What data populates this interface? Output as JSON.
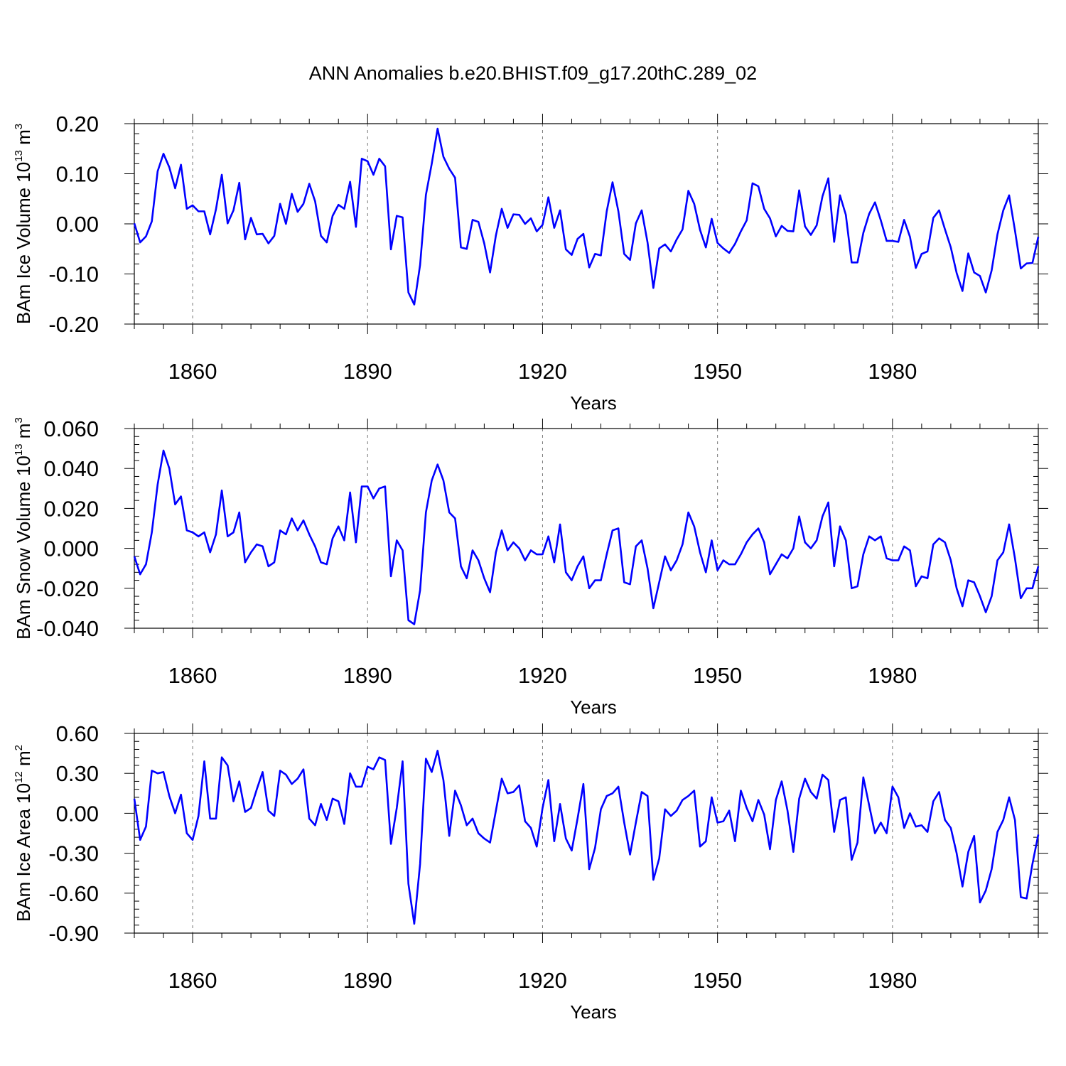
{
  "title": "ANN Anomalies b.e20.BHIST.f09_g17.20thC.289_02",
  "colors": {
    "line": "#0000ff",
    "frame": "#000000",
    "grid": "#777777"
  },
  "chart_data": [
    {
      "type": "line",
      "name": "ice-volume",
      "title": "ANN Anomalies b.e20.BHIST.f09_g17.20thC.289_02",
      "xlabel": "Years",
      "ylabel_main": "BAm Ice Volume 10",
      "ylabel_sup": "13",
      "ylabel_unit": " m",
      "ylabel_unit_sup": "3",
      "xlim": [
        1850,
        2005
      ],
      "ylim": [
        -0.2,
        0.2
      ],
      "xticks": [
        1860,
        1890,
        1920,
        1950,
        1980
      ],
      "xtick_labels": [
        "1860",
        "1890",
        "1920",
        "1950",
        "1980"
      ],
      "yticks": [
        0.2,
        0.1,
        0.0,
        -0.1,
        -0.2
      ],
      "ytick_labels": [
        "0.20",
        "0.10",
        "0.00",
        "-0.10",
        "-0.20"
      ],
      "x_start": 1850,
      "values": [
        0.001,
        -0.037,
        -0.025,
        0.005,
        0.105,
        0.14,
        0.113,
        0.071,
        0.118,
        0.03,
        0.037,
        0.025,
        0.025,
        -0.021,
        0.029,
        0.098,
        0.001,
        0.027,
        0.082,
        -0.031,
        0.012,
        -0.021,
        -0.02,
        -0.039,
        -0.024,
        0.04,
        0.0,
        0.06,
        0.024,
        0.04,
        0.08,
        0.045,
        -0.024,
        -0.037,
        0.016,
        0.038,
        0.03,
        0.084,
        -0.006,
        0.13,
        0.125,
        0.098,
        0.13,
        0.115,
        -0.051,
        0.016,
        0.013,
        -0.137,
        -0.161,
        -0.082,
        0.058,
        0.12,
        0.19,
        0.134,
        0.11,
        0.092,
        -0.047,
        -0.05,
        0.008,
        0.004,
        -0.039,
        -0.097,
        -0.023,
        0.03,
        -0.008,
        0.019,
        0.018,
        0.0,
        0.011,
        -0.015,
        -0.002,
        0.053,
        -0.008,
        0.027,
        -0.051,
        -0.062,
        -0.03,
        -0.02,
        -0.087,
        -0.06,
        -0.063,
        0.025,
        0.083,
        0.025,
        -0.06,
        -0.072,
        0.001,
        0.027,
        -0.037,
        -0.128,
        -0.049,
        -0.041,
        -0.055,
        -0.031,
        -0.011,
        0.066,
        0.04,
        -0.012,
        -0.047,
        0.01,
        -0.038,
        -0.049,
        -0.058,
        -0.04,
        -0.015,
        0.007,
        0.081,
        0.075,
        0.03,
        0.011,
        -0.025,
        -0.004,
        -0.014,
        -0.015,
        0.067,
        -0.005,
        -0.022,
        -0.003,
        0.055,
        0.091,
        -0.036,
        0.057,
        0.018,
        -0.077,
        -0.077,
        -0.018,
        0.02,
        0.043,
        0.007,
        -0.034,
        -0.034,
        -0.036,
        0.008,
        -0.026,
        -0.088,
        -0.06,
        -0.055,
        0.012,
        0.027,
        -0.011,
        -0.047,
        -0.098,
        -0.134,
        -0.059,
        -0.097,
        -0.104,
        -0.137,
        -0.093,
        -0.021,
        0.027,
        0.057,
        -0.013,
        -0.089,
        -0.079,
        -0.078,
        -0.026
      ]
    },
    {
      "type": "line",
      "name": "snow-volume",
      "xlabel": "Years",
      "ylabel_main": "BAm Snow Volume 10",
      "ylabel_sup": "13",
      "ylabel_unit": " m",
      "ylabel_unit_sup": "3",
      "xlim": [
        1850,
        2005
      ],
      "ylim": [
        -0.04,
        0.06
      ],
      "xticks": [
        1860,
        1890,
        1920,
        1950,
        1980
      ],
      "xtick_labels": [
        "1860",
        "1890",
        "1920",
        "1950",
        "1980"
      ],
      "yticks": [
        0.06,
        0.04,
        0.02,
        0.0,
        -0.02,
        -0.04
      ],
      "ytick_labels": [
        "0.060",
        "0.040",
        "0.020",
        "0.000",
        "-0.020",
        "-0.040"
      ],
      "x_start": 1850,
      "values": [
        -0.004,
        -0.013,
        -0.008,
        0.008,
        0.032,
        0.049,
        0.04,
        0.022,
        0.026,
        0.009,
        0.008,
        0.006,
        0.008,
        -0.002,
        0.007,
        0.029,
        0.006,
        0.008,
        0.018,
        -0.007,
        -0.002,
        0.002,
        0.001,
        -0.009,
        -0.007,
        0.009,
        0.007,
        0.015,
        0.009,
        0.014,
        0.007,
        0.001,
        -0.007,
        -0.008,
        0.005,
        0.011,
        0.004,
        0.028,
        0.003,
        0.031,
        0.031,
        0.025,
        0.03,
        0.031,
        -0.014,
        0.004,
        -0.001,
        -0.036,
        -0.038,
        -0.021,
        0.018,
        0.034,
        0.042,
        0.034,
        0.018,
        0.015,
        -0.009,
        -0.015,
        -0.001,
        -0.006,
        -0.015,
        -0.022,
        -0.002,
        0.009,
        -0.001,
        0.003,
        0.0,
        -0.006,
        -0.001,
        -0.003,
        -0.003,
        0.006,
        -0.007,
        0.012,
        -0.012,
        -0.016,
        -0.009,
        -0.004,
        -0.02,
        -0.016,
        -0.016,
        -0.003,
        0.009,
        0.01,
        -0.017,
        -0.018,
        0.001,
        0.004,
        -0.01,
        -0.03,
        -0.017,
        -0.004,
        -0.011,
        -0.006,
        0.002,
        0.018,
        0.011,
        -0.002,
        -0.012,
        0.004,
        -0.011,
        -0.006,
        -0.008,
        -0.008,
        -0.003,
        0.003,
        0.007,
        0.01,
        0.003,
        -0.013,
        -0.008,
        -0.003,
        -0.005,
        0.0,
        0.016,
        0.003,
        0.0,
        0.004,
        0.016,
        0.023,
        -0.009,
        0.011,
        0.004,
        -0.02,
        -0.019,
        -0.003,
        0.006,
        0.004,
        0.006,
        -0.005,
        -0.006,
        -0.006,
        0.001,
        -0.001,
        -0.019,
        -0.014,
        -0.015,
        0.002,
        0.005,
        0.003,
        -0.006,
        -0.02,
        -0.029,
        -0.016,
        -0.017,
        -0.024,
        -0.032,
        -0.024,
        -0.006,
        -0.002,
        0.012,
        -0.005,
        -0.025,
        -0.02,
        -0.02,
        -0.009
      ]
    },
    {
      "type": "line",
      "name": "ice-area",
      "xlabel": "Years",
      "ylabel_main": "BAm Ice Area 10",
      "ylabel_sup": "12",
      "ylabel_unit": " m",
      "ylabel_unit_sup": "2",
      "xlim": [
        1850,
        2005
      ],
      "ylim": [
        -0.9,
        0.6
      ],
      "xticks": [
        1860,
        1890,
        1920,
        1950,
        1980
      ],
      "xtick_labels": [
        "1860",
        "1890",
        "1920",
        "1950",
        "1980"
      ],
      "yticks": [
        0.6,
        0.3,
        0.0,
        -0.3,
        -0.6,
        -0.9
      ],
      "ytick_labels": [
        "0.60",
        "0.30",
        "0.00",
        "-0.30",
        "-0.60",
        "-0.90"
      ],
      "x_start": 1850,
      "values": [
        0.11,
        -0.2,
        -0.1,
        0.32,
        0.3,
        0.31,
        0.13,
        0.0,
        0.14,
        -0.15,
        -0.2,
        -0.02,
        0.39,
        -0.04,
        -0.04,
        0.42,
        0.36,
        0.09,
        0.24,
        0.01,
        0.04,
        0.18,
        0.31,
        0.02,
        -0.02,
        0.32,
        0.29,
        0.22,
        0.26,
        0.33,
        -0.04,
        -0.09,
        0.07,
        -0.05,
        0.11,
        0.09,
        -0.08,
        0.3,
        0.2,
        0.2,
        0.35,
        0.33,
        0.42,
        0.4,
        -0.23,
        0.04,
        0.39,
        -0.53,
        -0.83,
        -0.38,
        0.41,
        0.31,
        0.47,
        0.25,
        -0.17,
        0.17,
        0.06,
        -0.09,
        -0.04,
        -0.15,
        -0.19,
        -0.22,
        0.02,
        0.26,
        0.15,
        0.16,
        0.21,
        -0.06,
        -0.11,
        -0.25,
        0.04,
        0.25,
        -0.21,
        0.07,
        -0.19,
        -0.28,
        -0.04,
        0.22,
        -0.42,
        -0.26,
        0.03,
        0.13,
        0.15,
        0.2,
        -0.07,
        -0.31,
        -0.07,
        0.16,
        0.13,
        -0.5,
        -0.34,
        0.03,
        -0.02,
        0.02,
        0.1,
        0.13,
        0.17,
        -0.25,
        -0.21,
        0.12,
        -0.07,
        -0.06,
        0.02,
        -0.21,
        0.17,
        0.04,
        -0.06,
        0.1,
        -0.01,
        -0.27,
        0.1,
        0.24,
        0.02,
        -0.29,
        0.11,
        0.26,
        0.16,
        0.11,
        0.29,
        0.25,
        -0.14,
        0.1,
        0.12,
        -0.35,
        -0.22,
        0.27,
        0.06,
        -0.15,
        -0.07,
        -0.15,
        0.2,
        0.12,
        -0.11,
        0.0,
        -0.1,
        -0.09,
        -0.14,
        0.09,
        0.16,
        -0.05,
        -0.11,
        -0.3,
        -0.55,
        -0.29,
        -0.17,
        -0.67,
        -0.58,
        -0.42,
        -0.14,
        -0.05,
        0.12,
        -0.05,
        -0.63,
        -0.64,
        -0.38,
        -0.16
      ]
    }
  ]
}
